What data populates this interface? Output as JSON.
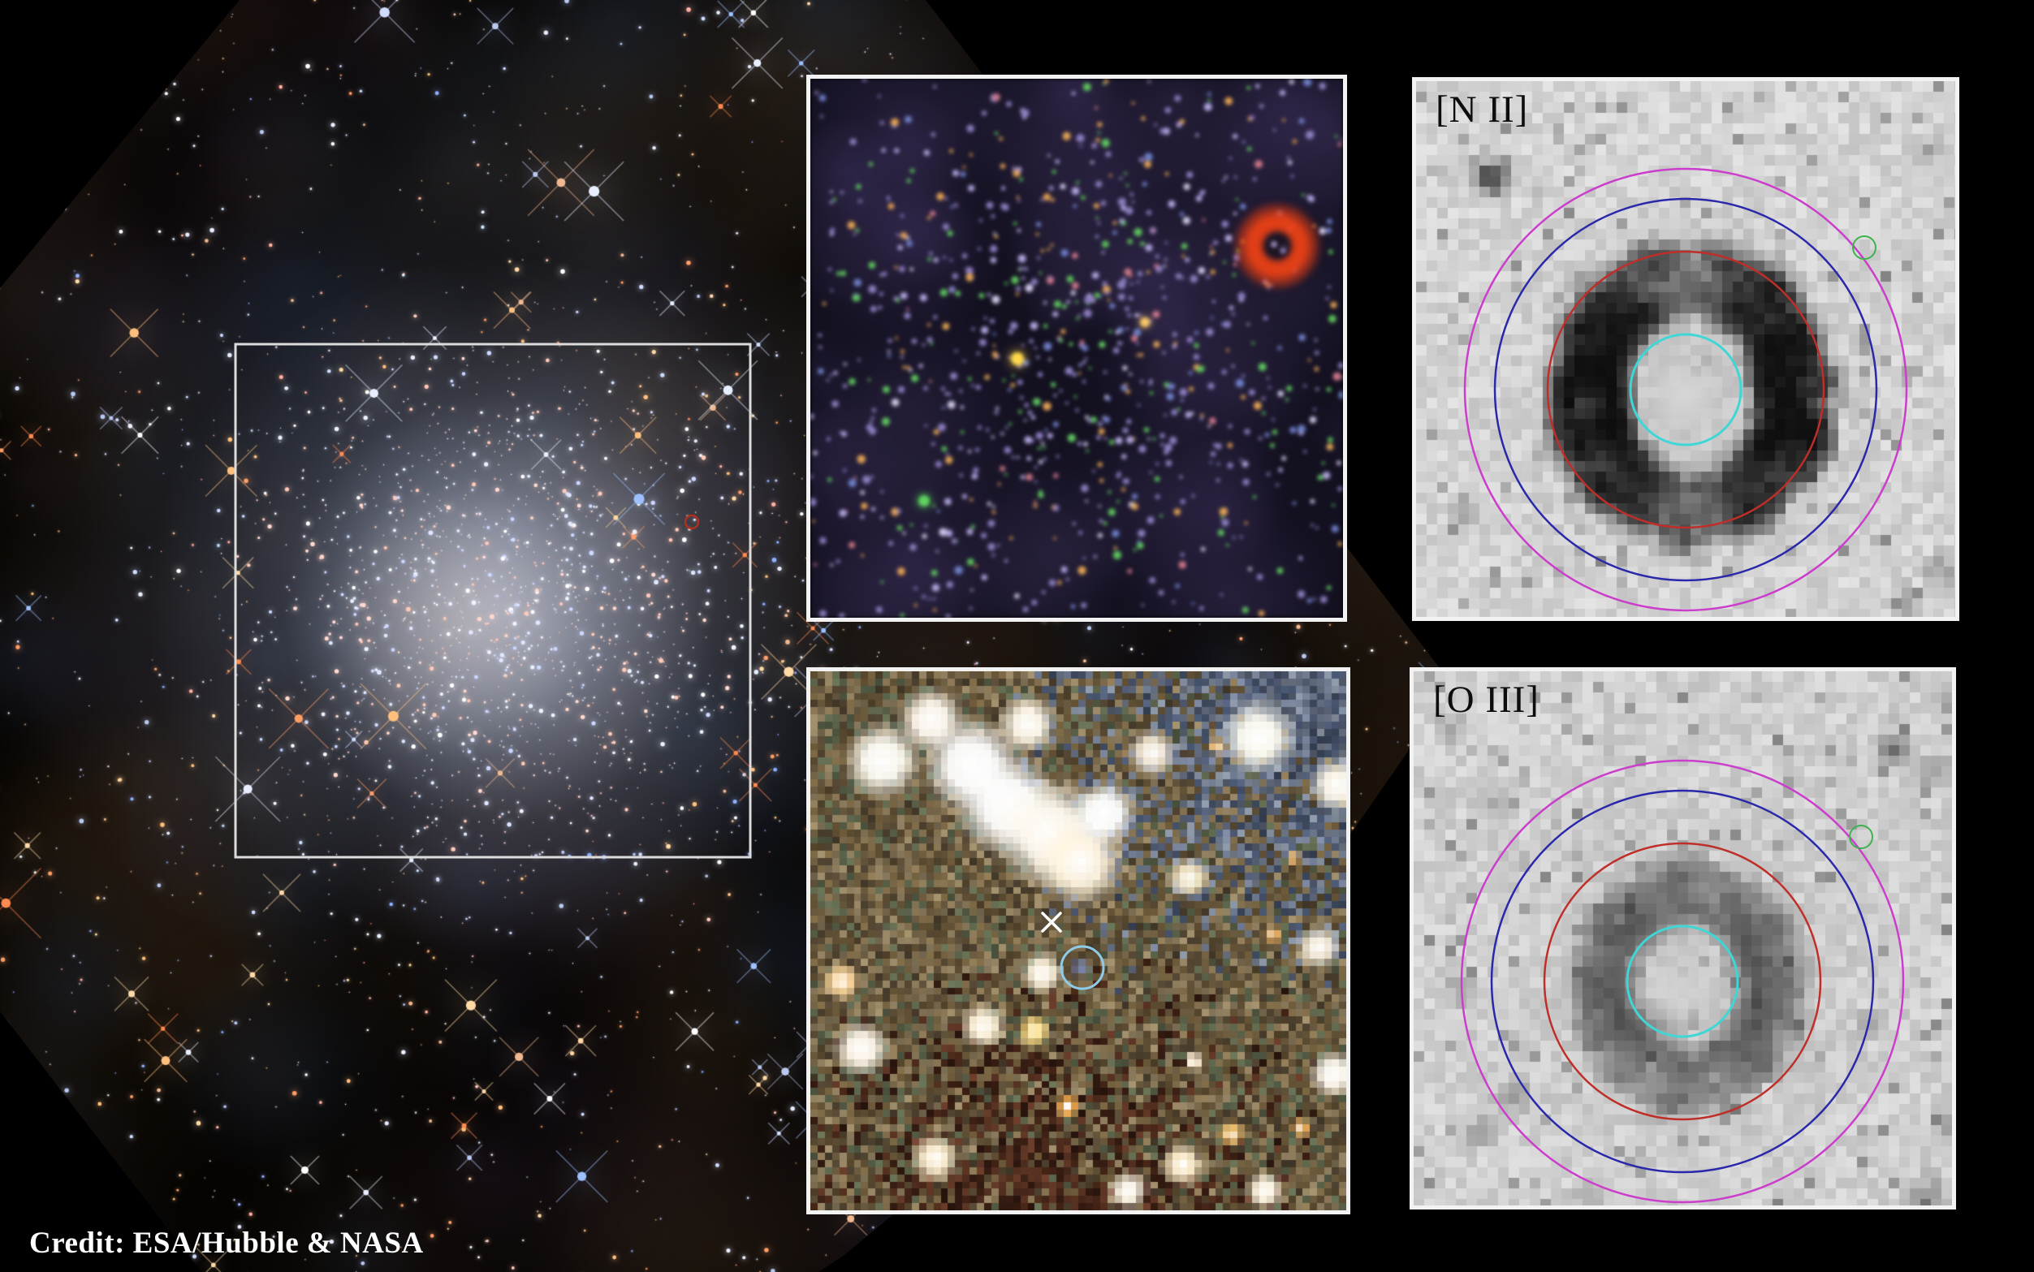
{
  "figure": {
    "credit": "Credit: ESA/Hubble & NASA"
  },
  "panels": {
    "nii": {
      "label": "[N II]"
    },
    "oiii": {
      "label": "[O III]"
    }
  },
  "overlay": {
    "colors": {
      "zoom_box": "#dcdcdc",
      "main_marker": "#b03020",
      "x_marker": "#ffffff",
      "candidate_circle": "#8ecbe8",
      "aperture_cyan": "#3fd6d6",
      "aperture_red": "#bf2e28",
      "aperture_blue": "#2a28aa",
      "aperture_magenta": "#cb3ecb",
      "aperture_green": "#3cb34c"
    }
  }
}
